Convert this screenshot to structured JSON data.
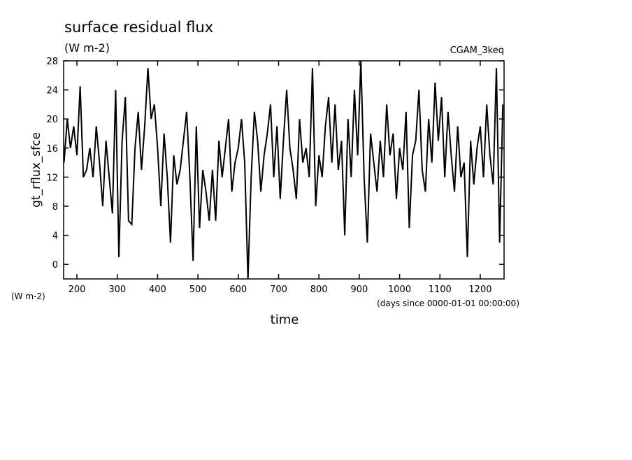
{
  "chart_data": {
    "type": "line",
    "title": "surface residual flux",
    "subtitle": "(W m-2)",
    "annotation": "CGAM_3keq",
    "y_label": "gt_rflux_sfce",
    "y_units": "(W m-2)",
    "x_label": "time",
    "x_units": "(days since 0000-01-01 00:00:00)",
    "x": [
      168,
      176,
      184,
      192,
      200,
      208,
      216,
      224,
      232,
      240,
      248,
      256,
      264,
      272,
      280,
      288,
      296,
      304,
      312,
      320,
      328,
      336,
      344,
      352,
      360,
      368,
      376,
      384,
      392,
      400,
      408,
      416,
      424,
      432,
      440,
      448,
      456,
      464,
      472,
      480,
      488,
      496,
      504,
      512,
      520,
      528,
      536,
      544,
      552,
      560,
      568,
      576,
      584,
      592,
      600,
      608,
      616,
      624,
      632,
      640,
      648,
      656,
      664,
      672,
      680,
      688,
      696,
      704,
      712,
      720,
      728,
      736,
      744,
      752,
      760,
      768,
      776,
      784,
      792,
      800,
      808,
      816,
      824,
      832,
      840,
      848,
      856,
      864,
      872,
      880,
      888,
      896,
      904,
      912,
      920,
      928,
      936,
      944,
      952,
      960,
      968,
      976,
      984,
      992,
      1000,
      1008,
      1016,
      1024,
      1032,
      1040,
      1048,
      1056,
      1064,
      1072,
      1080,
      1088,
      1096,
      1104,
      1112,
      1120,
      1128,
      1136,
      1144,
      1152,
      1160,
      1168,
      1176,
      1184,
      1192,
      1200,
      1208,
      1216,
      1224,
      1232,
      1240,
      1248,
      1256
    ],
    "series": [
      {
        "name": "gt_rflux_sfce",
        "color": "#000000",
        "values": [
          14,
          20,
          16,
          19,
          15,
          24.5,
          12,
          13,
          16,
          12,
          19,
          14,
          8,
          17,
          12,
          7,
          24,
          1,
          17,
          23,
          6,
          5.5,
          16,
          21,
          13,
          19,
          27,
          20,
          22,
          16,
          8,
          18,
          12,
          3,
          15,
          11,
          13,
          17,
          21,
          12,
          0.5,
          19,
          5,
          13,
          10,
          6,
          13,
          6,
          17,
          12,
          16,
          20,
          10,
          14,
          16,
          20,
          14,
          -2,
          12,
          21,
          17,
          10,
          15,
          18,
          22,
          12,
          19,
          9,
          17,
          24,
          16,
          13,
          9,
          20,
          14,
          16,
          12,
          27,
          8,
          15,
          12,
          19,
          23,
          14,
          22,
          13,
          17,
          4,
          20,
          12,
          24,
          15,
          28,
          12,
          3,
          18,
          14,
          10,
          17,
          12,
          22,
          15,
          18,
          9,
          16,
          13,
          21,
          5,
          15,
          17,
          24,
          13,
          10,
          20,
          14,
          25,
          17,
          23,
          12,
          21,
          15,
          10,
          19,
          12,
          14,
          1,
          17,
          11,
          16,
          19,
          12,
          22,
          15,
          11,
          27,
          3,
          22
        ]
      }
    ],
    "xlim": [
      167,
      1259
    ],
    "ylim": [
      -2,
      28
    ],
    "xticks": [
      200,
      300,
      400,
      500,
      600,
      700,
      800,
      900,
      1000,
      1100,
      1200
    ],
    "yticks": [
      0,
      4,
      8,
      12,
      16,
      20,
      24,
      28
    ]
  }
}
